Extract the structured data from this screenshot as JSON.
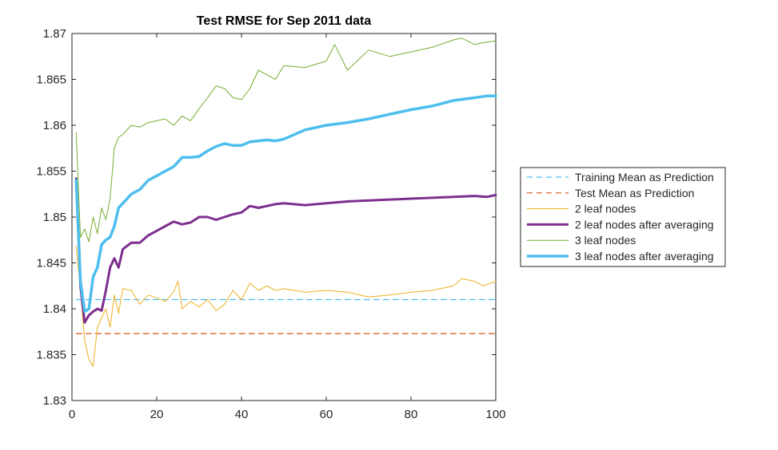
{
  "chart_data": {
    "type": "line",
    "title": "Test RMSE for Sep 2011 data",
    "xlabel": "",
    "ylabel": "",
    "xlim": [
      0,
      100
    ],
    "ylim": [
      1.83,
      1.87
    ],
    "xticks": [
      0,
      20,
      40,
      60,
      80,
      100
    ],
    "xtick_labels": [
      "0",
      "20",
      "40",
      "60",
      "80",
      "100"
    ],
    "yticks": [
      1.83,
      1.835,
      1.84,
      1.845,
      1.85,
      1.855,
      1.86,
      1.865,
      1.87
    ],
    "ytick_labels": [
      "1.83",
      "1.835",
      "1.84",
      "1.845",
      "1.85",
      "1.855",
      "1.86",
      "1.865",
      "1.87"
    ],
    "grid": false,
    "legend_position": "right",
    "series": [
      {
        "name": "Training Mean as Prediction",
        "color": "#4DBEEE",
        "style": "dashed",
        "width": 1.2,
        "x": [
          1,
          100
        ],
        "y": [
          1.841,
          1.841
        ]
      },
      {
        "name": "Test Mean as Prediction",
        "color": "#D95319",
        "style": "dashed",
        "width": 1.2,
        "x": [
          1,
          100
        ],
        "y": [
          1.8373,
          1.8373
        ]
      },
      {
        "name": "2 leaf nodes",
        "color": "#EDB120",
        "style": "solid",
        "width": 1,
        "x": [
          1,
          2,
          3,
          4,
          5,
          6,
          7,
          8,
          9,
          10,
          11,
          12,
          14,
          16,
          18,
          20,
          22,
          24,
          25,
          26,
          28,
          30,
          32,
          34,
          36,
          38,
          40,
          42,
          44,
          46,
          48,
          50,
          55,
          60,
          65,
          70,
          75,
          80,
          85,
          90,
          92,
          95,
          97,
          100
        ],
        "y": [
          1.8468,
          1.842,
          1.8365,
          1.8345,
          1.8337,
          1.838,
          1.839,
          1.84,
          1.838,
          1.8415,
          1.8395,
          1.8422,
          1.842,
          1.8405,
          1.8415,
          1.8412,
          1.8408,
          1.8418,
          1.843,
          1.84,
          1.8408,
          1.8402,
          1.841,
          1.8398,
          1.8405,
          1.842,
          1.841,
          1.8428,
          1.842,
          1.8425,
          1.842,
          1.8422,
          1.8418,
          1.842,
          1.8418,
          1.8413,
          1.8415,
          1.8418,
          1.842,
          1.8425,
          1.8433,
          1.843,
          1.8425,
          1.843
        ]
      },
      {
        "name": "2 leaf nodes after averaging",
        "color": "#7E2F8E",
        "style": "solid",
        "width": 3,
        "x": [
          1,
          2,
          3,
          4,
          5,
          6,
          7,
          8,
          9,
          10,
          11,
          12,
          14,
          16,
          18,
          20,
          22,
          24,
          26,
          28,
          30,
          32,
          34,
          36,
          38,
          40,
          42,
          44,
          46,
          48,
          50,
          55,
          60,
          65,
          70,
          75,
          80,
          85,
          90,
          95,
          98,
          100
        ],
        "y": [
          1.8542,
          1.8425,
          1.8385,
          1.8393,
          1.8397,
          1.84,
          1.8398,
          1.842,
          1.8445,
          1.8455,
          1.8445,
          1.8465,
          1.8472,
          1.8472,
          1.848,
          1.8485,
          1.849,
          1.8495,
          1.8492,
          1.8494,
          1.85,
          1.85,
          1.8497,
          1.85,
          1.8503,
          1.8505,
          1.8512,
          1.851,
          1.8512,
          1.8514,
          1.8515,
          1.8513,
          1.8515,
          1.8517,
          1.8518,
          1.8519,
          1.852,
          1.8521,
          1.8522,
          1.8523,
          1.8522,
          1.8524
        ]
      },
      {
        "name": "3 leaf nodes",
        "color": "#77AC30",
        "style": "solid",
        "width": 1,
        "x": [
          1,
          2,
          3,
          4,
          5,
          6,
          7,
          8,
          9,
          10,
          11,
          12,
          14,
          16,
          18,
          20,
          22,
          24,
          26,
          28,
          30,
          32,
          34,
          36,
          38,
          40,
          42,
          44,
          46,
          48,
          50,
          55,
          60,
          62,
          65,
          70,
          75,
          80,
          85,
          90,
          92,
          95,
          97,
          100
        ],
        "y": [
          1.8592,
          1.8478,
          1.8487,
          1.8473,
          1.85,
          1.8482,
          1.851,
          1.8497,
          1.852,
          1.8575,
          1.8587,
          1.859,
          1.86,
          1.8598,
          1.8603,
          1.8605,
          1.8607,
          1.86,
          1.861,
          1.8605,
          1.8618,
          1.863,
          1.8643,
          1.864,
          1.863,
          1.8628,
          1.864,
          1.866,
          1.8655,
          1.865,
          1.8665,
          1.8663,
          1.867,
          1.8688,
          1.866,
          1.8682,
          1.8675,
          1.868,
          1.8685,
          1.8693,
          1.8695,
          1.8688,
          1.869,
          1.8692
        ]
      },
      {
        "name": "3 leaf nodes after averaging",
        "color": "#4DBEEE",
        "style": "solid",
        "width": 3.5,
        "x": [
          1,
          2,
          3,
          4,
          5,
          6,
          7,
          8,
          9,
          10,
          11,
          12,
          14,
          16,
          18,
          20,
          22,
          24,
          26,
          28,
          30,
          32,
          34,
          36,
          38,
          40,
          42,
          44,
          46,
          48,
          50,
          55,
          60,
          65,
          70,
          75,
          80,
          85,
          90,
          95,
          98,
          100
        ],
        "y": [
          1.854,
          1.843,
          1.8397,
          1.84,
          1.8435,
          1.8445,
          1.847,
          1.8475,
          1.8478,
          1.849,
          1.851,
          1.8515,
          1.8525,
          1.853,
          1.854,
          1.8545,
          1.855,
          1.8555,
          1.8565,
          1.8565,
          1.8566,
          1.8572,
          1.8577,
          1.858,
          1.8578,
          1.8578,
          1.8582,
          1.8583,
          1.8584,
          1.8583,
          1.8585,
          1.8595,
          1.86,
          1.8603,
          1.8607,
          1.8612,
          1.8617,
          1.8621,
          1.8627,
          1.863,
          1.8632,
          1.8632
        ]
      }
    ]
  }
}
